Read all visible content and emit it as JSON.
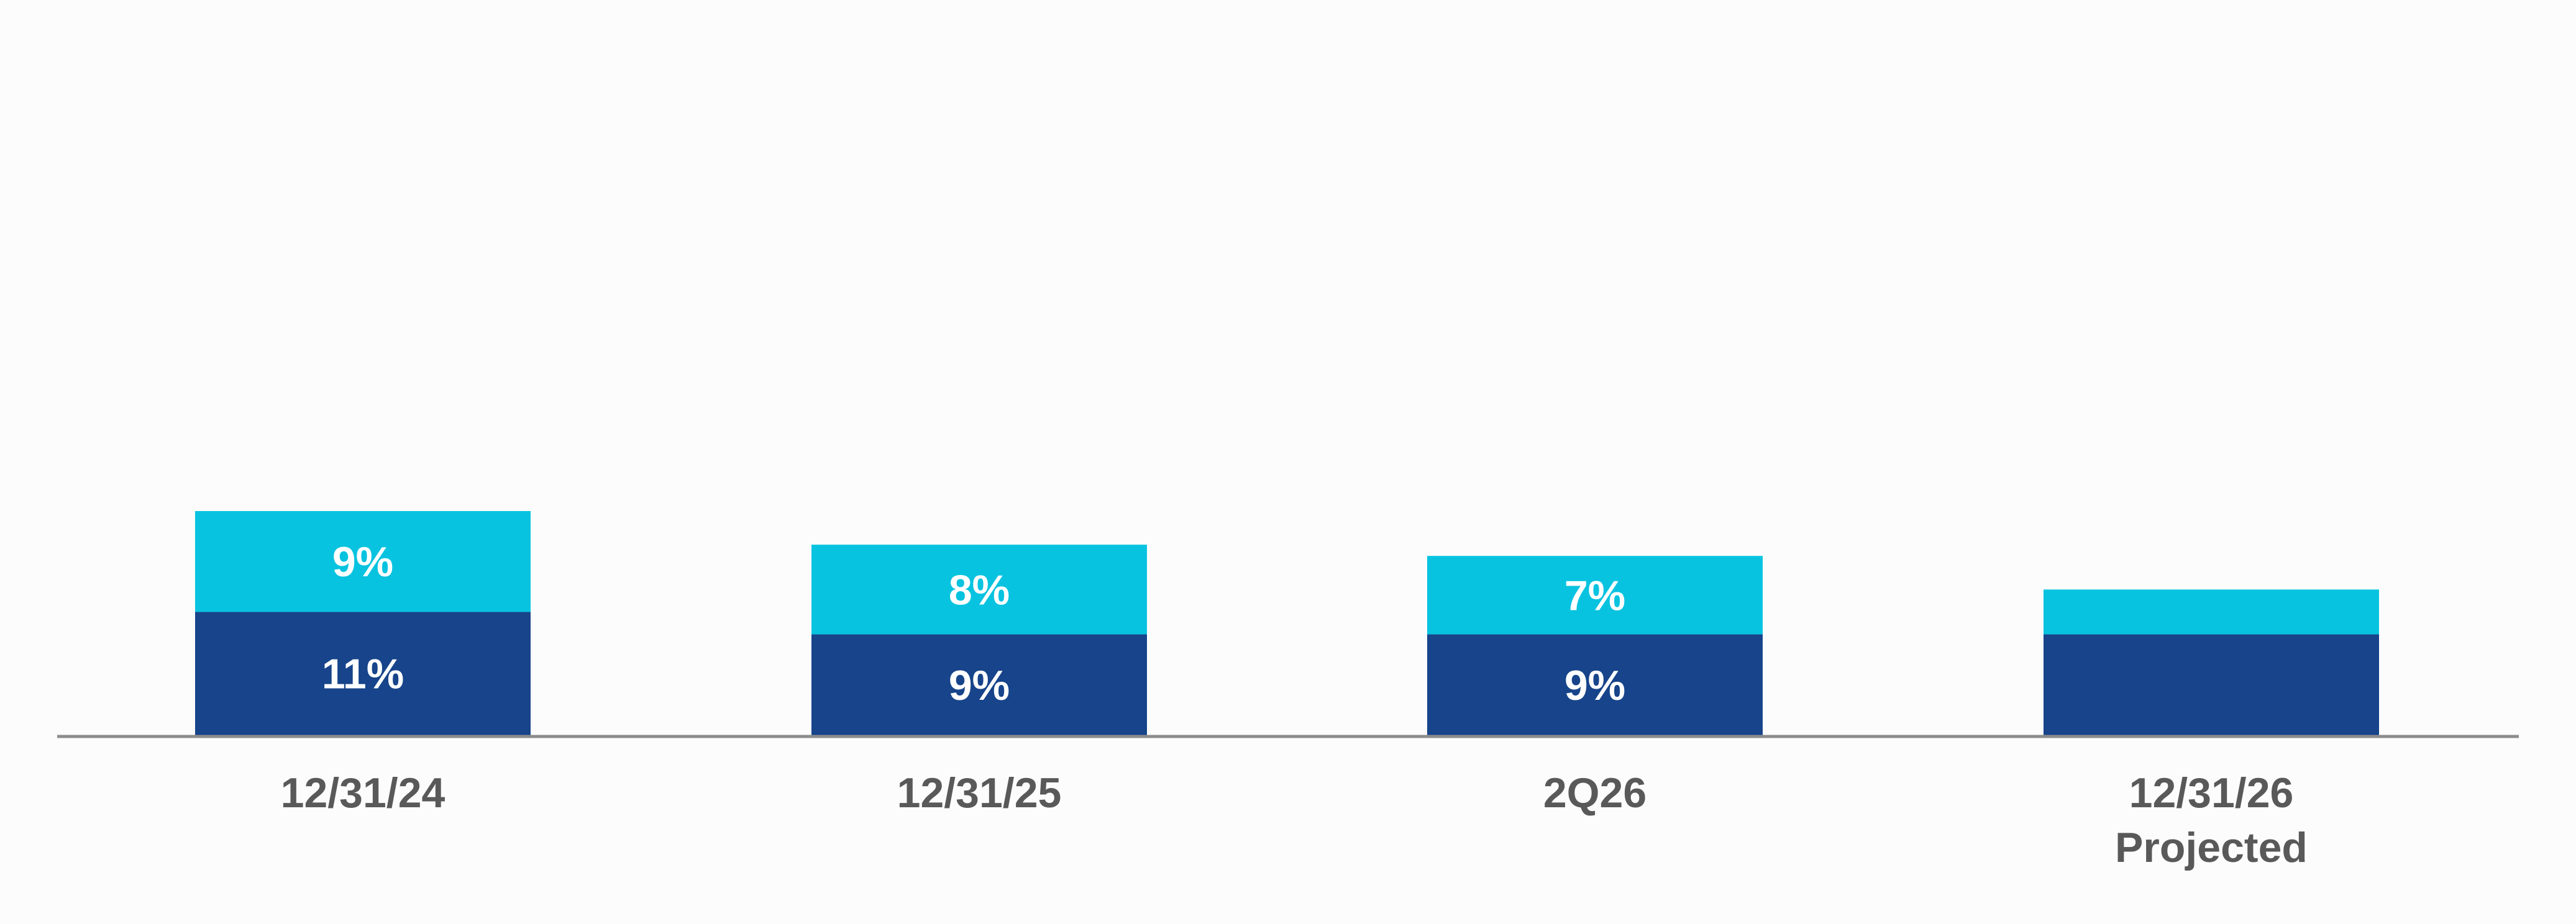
{
  "chart_data": {
    "type": "bar",
    "stacked": true,
    "categories": [
      [
        "12/31/24"
      ],
      [
        "12/31/25"
      ],
      [
        "2Q26"
      ],
      [
        "12/31/26",
        "Projected"
      ]
    ],
    "series": [
      {
        "color": "#17448a",
        "values": [
          11,
          9,
          9,
          9
        ],
        "data_labels": [
          "11%",
          "9%",
          "9%",
          ""
        ]
      },
      {
        "color": "#08c3e0",
        "values": [
          9,
          8,
          7,
          4
        ],
        "data_labels": [
          "9%",
          "8%",
          "7%",
          ""
        ]
      }
    ],
    "title": "",
    "xlabel": "",
    "ylabel": "",
    "ylim": [
      0,
      30
    ],
    "grid": false,
    "legend": "none",
    "colors": {
      "axis": "#8c8c8c",
      "category_text": "#595959",
      "data_label_text": "#ffffff"
    }
  }
}
